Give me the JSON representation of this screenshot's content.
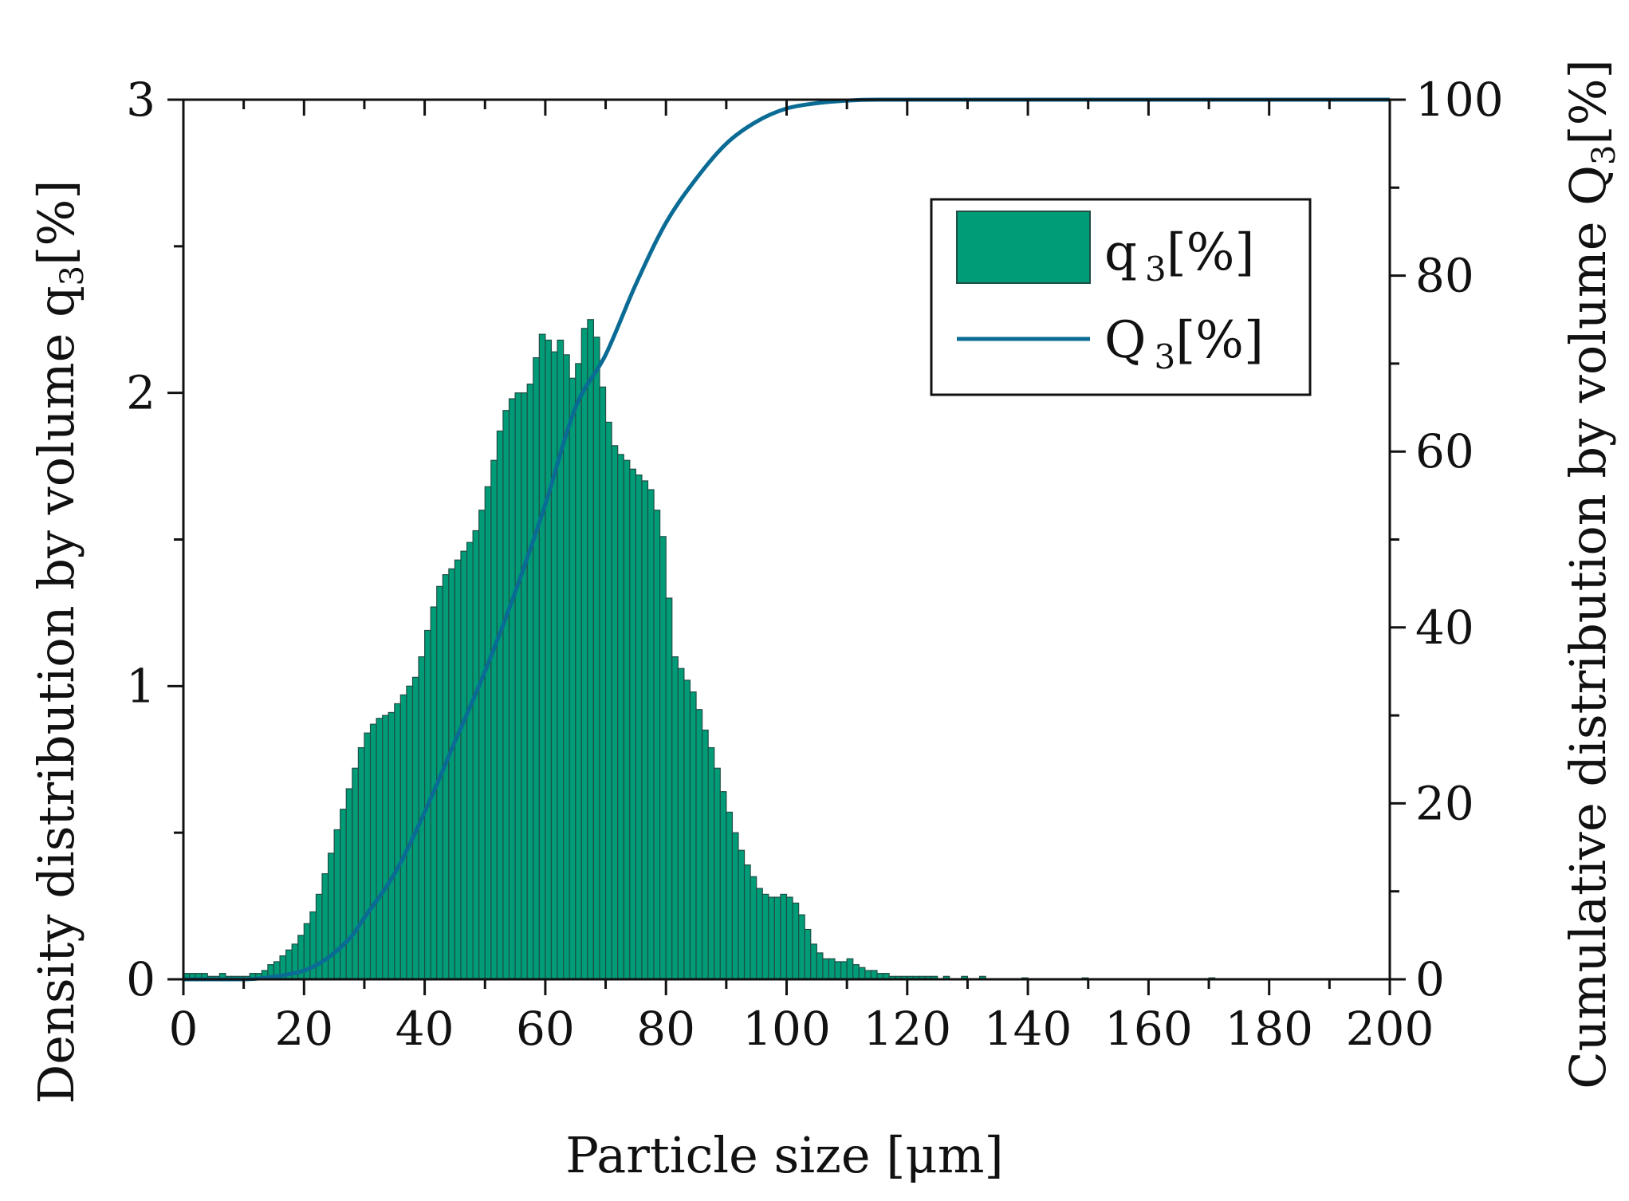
{
  "chart_data": {
    "type": "bar",
    "xlabel": "Particle size [μm]",
    "ylabel_left": {
      "main": "Density distribution by volume q",
      "sub": "3",
      "tail": "[%]"
    },
    "ylabel_right": {
      "main": "Cumulative distribution by volume Q",
      "sub": "3",
      "tail": "[%]"
    },
    "xlim": [
      0,
      200
    ],
    "ylim_left": [
      0,
      3
    ],
    "ylim_right": [
      0,
      100
    ],
    "x_ticks": [
      0,
      20,
      40,
      60,
      80,
      100,
      120,
      140,
      160,
      180,
      200
    ],
    "y_ticks_left": [
      0,
      1,
      2,
      3
    ],
    "y_ticks_right": [
      0,
      20,
      40,
      60,
      80,
      100
    ],
    "x_tick_labels": [
      "0",
      "20",
      "40",
      "60",
      "80",
      "100",
      "120",
      "140",
      "160",
      "180",
      "200"
    ],
    "y_tick_labels_left": [
      "0",
      "1",
      "2",
      "3"
    ],
    "y_tick_labels_right": [
      "0",
      "20",
      "40",
      "60",
      "80",
      "100"
    ],
    "legend": {
      "position": "top-right",
      "entries": [
        {
          "main": "q",
          "sub": "3",
          "tail": "[%]"
        },
        {
          "main": "Q",
          "sub": "3",
          "tail": "[%]"
        }
      ]
    },
    "colors": {
      "bar_fill": "#009b77",
      "bar_edge": "#1f4f45",
      "line": "#0a6b94"
    },
    "series": [
      {
        "kind": "bar",
        "bin_width": 1,
        "x": [
          0,
          1,
          2,
          3,
          4,
          5,
          6,
          7,
          8,
          9,
          10,
          11,
          12,
          13,
          14,
          15,
          16,
          17,
          18,
          19,
          20,
          21,
          22,
          23,
          24,
          25,
          26,
          27,
          28,
          29,
          30,
          31,
          32,
          33,
          34,
          35,
          36,
          37,
          38,
          39,
          40,
          41,
          42,
          43,
          44,
          45,
          46,
          47,
          48,
          49,
          50,
          51,
          52,
          53,
          54,
          55,
          56,
          57,
          58,
          59,
          60,
          61,
          62,
          63,
          64,
          65,
          66,
          67,
          68,
          69,
          70,
          71,
          72,
          73,
          74,
          75,
          76,
          77,
          78,
          79,
          80,
          81,
          82,
          83,
          84,
          85,
          86,
          87,
          88,
          89,
          90,
          91,
          92,
          93,
          94,
          95,
          96,
          97,
          98,
          99,
          100,
          101,
          102,
          103,
          104,
          105,
          106,
          107,
          108,
          109,
          110,
          111,
          112,
          113,
          114,
          115,
          116,
          117,
          118,
          119,
          120,
          121,
          122,
          123,
          124,
          125,
          126,
          127,
          128,
          129,
          130,
          131,
          132,
          133,
          134,
          135,
          136,
          137,
          138,
          139,
          140,
          141,
          142,
          143,
          144,
          145,
          146,
          147,
          148,
          149,
          150,
          151,
          152,
          153,
          154,
          155,
          156,
          157,
          158,
          159,
          160,
          161,
          162,
          163,
          164,
          165,
          166,
          167,
          168,
          169,
          170,
          171,
          172,
          173,
          174,
          175,
          176,
          177,
          178,
          179,
          180,
          181,
          182,
          183,
          184,
          185,
          186,
          187,
          188,
          189,
          190,
          191,
          192,
          193,
          194,
          195,
          196,
          197,
          198,
          199
        ],
        "values": [
          0.02,
          0.02,
          0.02,
          0.02,
          0.01,
          0.01,
          0.02,
          0.01,
          0.01,
          0.01,
          0.01,
          0.02,
          0.02,
          0.03,
          0.05,
          0.06,
          0.08,
          0.1,
          0.12,
          0.15,
          0.19,
          0.23,
          0.29,
          0.36,
          0.43,
          0.51,
          0.58,
          0.65,
          0.72,
          0.79,
          0.84,
          0.87,
          0.89,
          0.9,
          0.91,
          0.94,
          0.97,
          1.0,
          1.03,
          1.1,
          1.19,
          1.27,
          1.34,
          1.38,
          1.4,
          1.43,
          1.46,
          1.49,
          1.53,
          1.6,
          1.68,
          1.77,
          1.87,
          1.94,
          1.98,
          2.0,
          2.0,
          2.03,
          2.12,
          2.2,
          2.18,
          2.14,
          2.18,
          2.13,
          2.05,
          2.1,
          2.22,
          2.25,
          2.19,
          2.02,
          1.9,
          1.82,
          1.79,
          1.77,
          1.74,
          1.72,
          1.7,
          1.67,
          1.6,
          1.51,
          1.3,
          1.1,
          1.06,
          1.02,
          0.98,
          0.92,
          0.85,
          0.79,
          0.72,
          0.64,
          0.57,
          0.5,
          0.44,
          0.39,
          0.35,
          0.31,
          0.29,
          0.28,
          0.28,
          0.29,
          0.28,
          0.26,
          0.22,
          0.17,
          0.12,
          0.09,
          0.07,
          0.07,
          0.06,
          0.06,
          0.07,
          0.05,
          0.04,
          0.03,
          0.03,
          0.02,
          0.02,
          0.01,
          0.01,
          0.01,
          0.01,
          0.01,
          0.01,
          0.01,
          0.01,
          0.0,
          0.01,
          0.0,
          0.0,
          0.01,
          0.0,
          0.0,
          0.01,
          0,
          0,
          0,
          0,
          0,
          0,
          0.005,
          0,
          0,
          0,
          0,
          0,
          0,
          0,
          0,
          0,
          0.005,
          0,
          0,
          0,
          0,
          0,
          0,
          0,
          0,
          0,
          0,
          0,
          0,
          0,
          0,
          0,
          0,
          0,
          0,
          0,
          0,
          0.005,
          0,
          0,
          0,
          0,
          0,
          0,
          0,
          0,
          0,
          0,
          0,
          0,
          0,
          0,
          0,
          0,
          0,
          0,
          0,
          0,
          0,
          0,
          0,
          0,
          0,
          0,
          0,
          0,
          0
        ]
      },
      {
        "kind": "line",
        "x": [
          0,
          10,
          15,
          20,
          22,
          25,
          28,
          30,
          35,
          40,
          45,
          50,
          55,
          60,
          65,
          70,
          75,
          80,
          85,
          90,
          95,
          100,
          105,
          110,
          115,
          120,
          200
        ],
        "values": [
          0,
          0,
          0.3,
          1,
          1.6,
          3,
          5,
          7,
          12,
          19,
          27,
          35,
          44,
          54,
          65,
          71,
          79,
          86,
          91,
          95,
          97.5,
          99,
          99.6,
          99.9,
          100,
          100,
          100
        ]
      }
    ]
  }
}
